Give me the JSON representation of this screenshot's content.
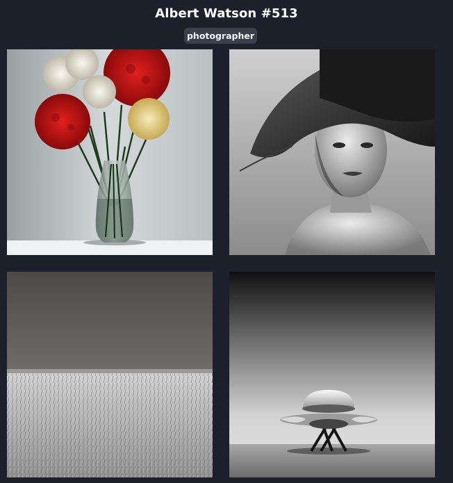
{
  "header": {
    "title": "Albert Watson #513",
    "tag": "photographer"
  },
  "gallery": {
    "images": [
      {
        "subject": "flowers-vase"
      },
      {
        "subject": "woman-hat-portrait"
      },
      {
        "subject": "wheat-field"
      },
      {
        "subject": "ufo-landing"
      }
    ]
  }
}
